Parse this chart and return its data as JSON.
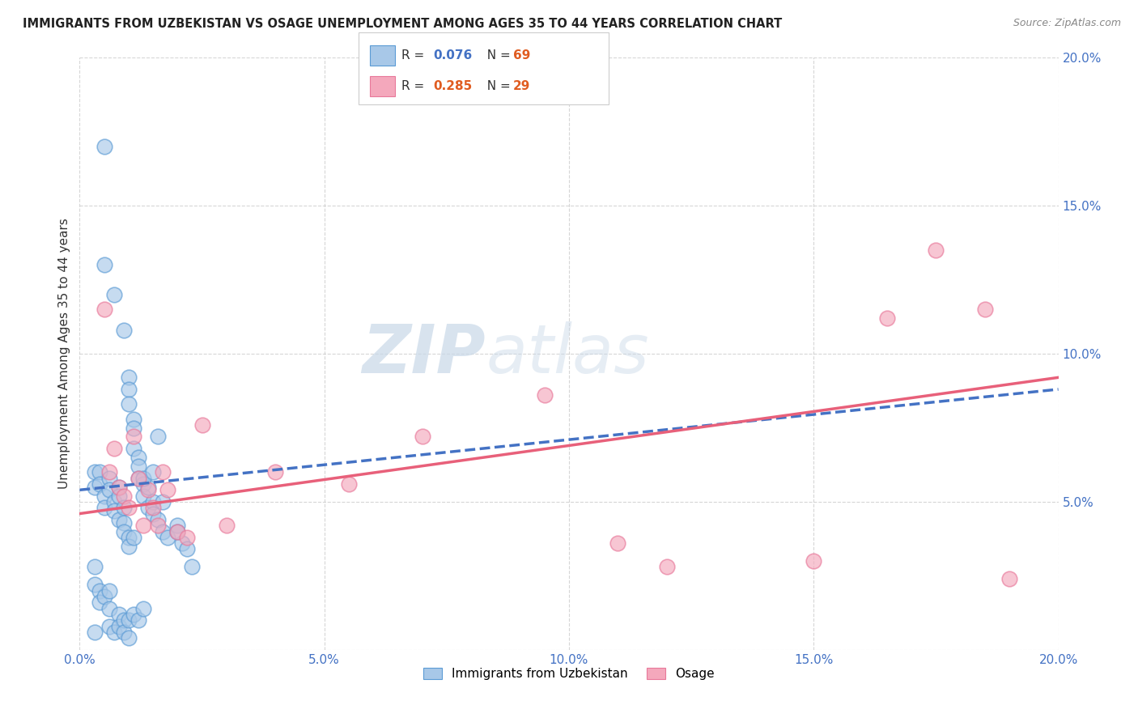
{
  "title": "IMMIGRANTS FROM UZBEKISTAN VS OSAGE UNEMPLOYMENT AMONG AGES 35 TO 44 YEARS CORRELATION CHART",
  "source": "Source: ZipAtlas.com",
  "ylabel": "Unemployment Among Ages 35 to 44 years",
  "xlim": [
    0,
    0.2
  ],
  "ylim": [
    0,
    0.2
  ],
  "xticks": [
    0.0,
    0.05,
    0.1,
    0.15,
    0.2
  ],
  "yticks": [
    0.0,
    0.05,
    0.1,
    0.15,
    0.2
  ],
  "color_blue": "#a8c8e8",
  "color_pink": "#f4a8bc",
  "edge_blue": "#5b9bd5",
  "edge_pink": "#e8789a",
  "line_blue_color": "#4472c4",
  "line_pink_color": "#e8607a",
  "legend_R1": "0.076",
  "legend_N1": "69",
  "legend_R2": "0.285",
  "legend_N2": "29",
  "watermark_ZIP": "ZIP",
  "watermark_atlas": "atlas",
  "scatter_blue_x": [
    0.005,
    0.005,
    0.007,
    0.009,
    0.01,
    0.01,
    0.01,
    0.011,
    0.011,
    0.011,
    0.012,
    0.012,
    0.012,
    0.013,
    0.013,
    0.014,
    0.014,
    0.015,
    0.015,
    0.016,
    0.016,
    0.017,
    0.018,
    0.02,
    0.021,
    0.022,
    0.003,
    0.003,
    0.004,
    0.004,
    0.005,
    0.005,
    0.006,
    0.006,
    0.007,
    0.007,
    0.008,
    0.008,
    0.008,
    0.009,
    0.009,
    0.009,
    0.01,
    0.01,
    0.011,
    0.013,
    0.015,
    0.017,
    0.02,
    0.023,
    0.003,
    0.003,
    0.004,
    0.004,
    0.005,
    0.006,
    0.006,
    0.006,
    0.007,
    0.008,
    0.008,
    0.009,
    0.009,
    0.01,
    0.011,
    0.012,
    0.013,
    0.003,
    0.01
  ],
  "scatter_blue_y": [
    0.17,
    0.13,
    0.12,
    0.108,
    0.092,
    0.088,
    0.083,
    0.078,
    0.075,
    0.068,
    0.065,
    0.062,
    0.058,
    0.056,
    0.052,
    0.055,
    0.048,
    0.05,
    0.046,
    0.044,
    0.072,
    0.04,
    0.038,
    0.042,
    0.036,
    0.034,
    0.06,
    0.055,
    0.06,
    0.056,
    0.052,
    0.048,
    0.058,
    0.054,
    0.05,
    0.047,
    0.055,
    0.052,
    0.044,
    0.048,
    0.043,
    0.04,
    0.038,
    0.035,
    0.038,
    0.058,
    0.06,
    0.05,
    0.04,
    0.028,
    0.028,
    0.022,
    0.02,
    0.016,
    0.018,
    0.02,
    0.014,
    0.008,
    0.006,
    0.012,
    0.008,
    0.01,
    0.006,
    0.01,
    0.012,
    0.01,
    0.014,
    0.006,
    0.004
  ],
  "scatter_pink_x": [
    0.005,
    0.006,
    0.007,
    0.008,
    0.009,
    0.01,
    0.011,
    0.012,
    0.013,
    0.014,
    0.015,
    0.016,
    0.017,
    0.018,
    0.02,
    0.022,
    0.025,
    0.03,
    0.04,
    0.055,
    0.07,
    0.095,
    0.11,
    0.12,
    0.15,
    0.165,
    0.175,
    0.185,
    0.19
  ],
  "scatter_pink_y": [
    0.115,
    0.06,
    0.068,
    0.055,
    0.052,
    0.048,
    0.072,
    0.058,
    0.042,
    0.054,
    0.048,
    0.042,
    0.06,
    0.054,
    0.04,
    0.038,
    0.076,
    0.042,
    0.06,
    0.056,
    0.072,
    0.086,
    0.036,
    0.028,
    0.03,
    0.112,
    0.135,
    0.115,
    0.024
  ],
  "blue_trend_x0": 0.0,
  "blue_trend_y0": 0.054,
  "blue_trend_x1": 0.2,
  "blue_trend_y1": 0.088,
  "pink_trend_x0": 0.0,
  "pink_trend_y0": 0.046,
  "pink_trend_x1": 0.2,
  "pink_trend_y1": 0.092
}
